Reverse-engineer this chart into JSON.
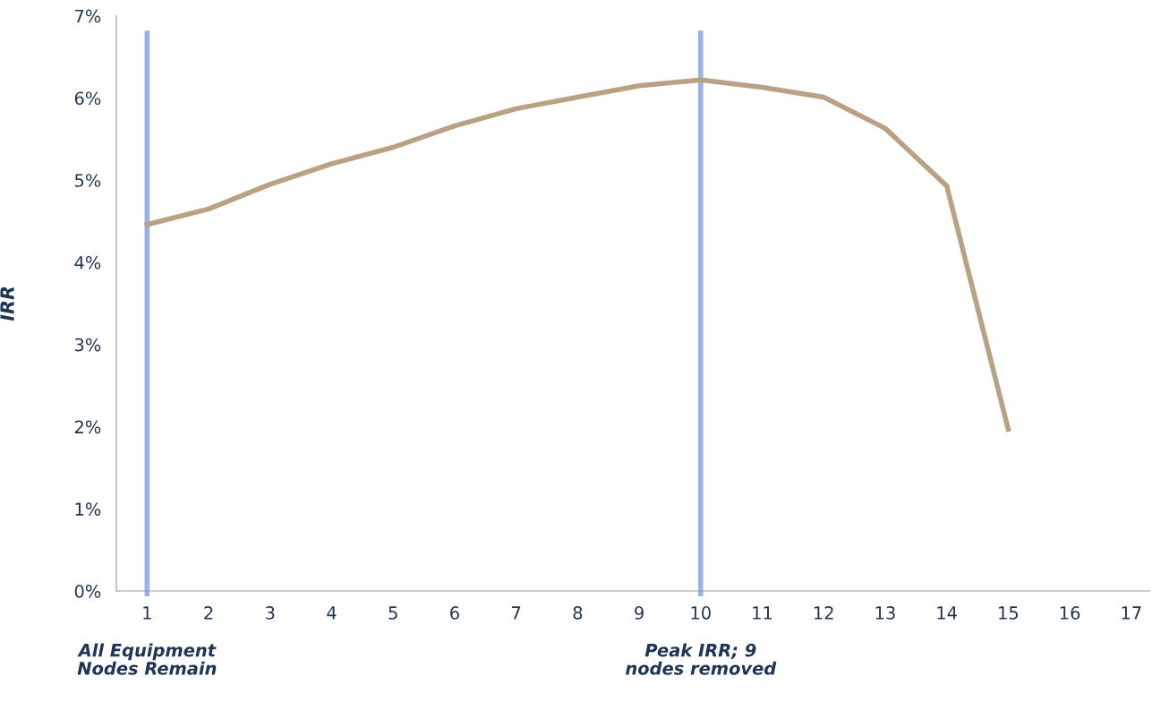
{
  "chart_data": {
    "type": "line",
    "ylabel": "IRR",
    "x": [
      1,
      2,
      3,
      4,
      5,
      6,
      7,
      8,
      9,
      10,
      11,
      12,
      13,
      14,
      15
    ],
    "series": [
      {
        "color": "#b9a184",
        "values": [
          4.46,
          4.65,
          4.95,
          5.2,
          5.4,
          5.66,
          5.87,
          6.01,
          6.15,
          6.22,
          6.13,
          6.01,
          5.63,
          4.93,
          1.97
        ]
      }
    ],
    "xlim": [
      0.5,
      17.3
    ],
    "xticks": [
      1,
      2,
      3,
      4,
      5,
      6,
      7,
      8,
      9,
      10,
      11,
      12,
      13,
      14,
      15,
      16,
      17
    ],
    "ylim": [
      0,
      7
    ],
    "yticks": [
      {
        "value": 0,
        "label": "0%"
      },
      {
        "value": 1,
        "label": "1%"
      },
      {
        "value": 2,
        "label": "2%"
      },
      {
        "value": 3,
        "label": "3%"
      },
      {
        "value": 4,
        "label": "4%"
      },
      {
        "value": 5,
        "label": "5%"
      },
      {
        "value": 6,
        "label": "6%"
      },
      {
        "value": 7,
        "label": "7%"
      }
    ],
    "ref_lines": [
      {
        "axis": "x",
        "value": 1,
        "color": "#99b0ea"
      },
      {
        "axis": "x",
        "value": 10,
        "color": "#99b0ea"
      }
    ],
    "annotations": [
      "All Equipment\nNodes Remain",
      "Peak IRR; 9\nnodes removed"
    ],
    "grid": false,
    "legend": false,
    "marker": "none",
    "line_style": "solid"
  }
}
